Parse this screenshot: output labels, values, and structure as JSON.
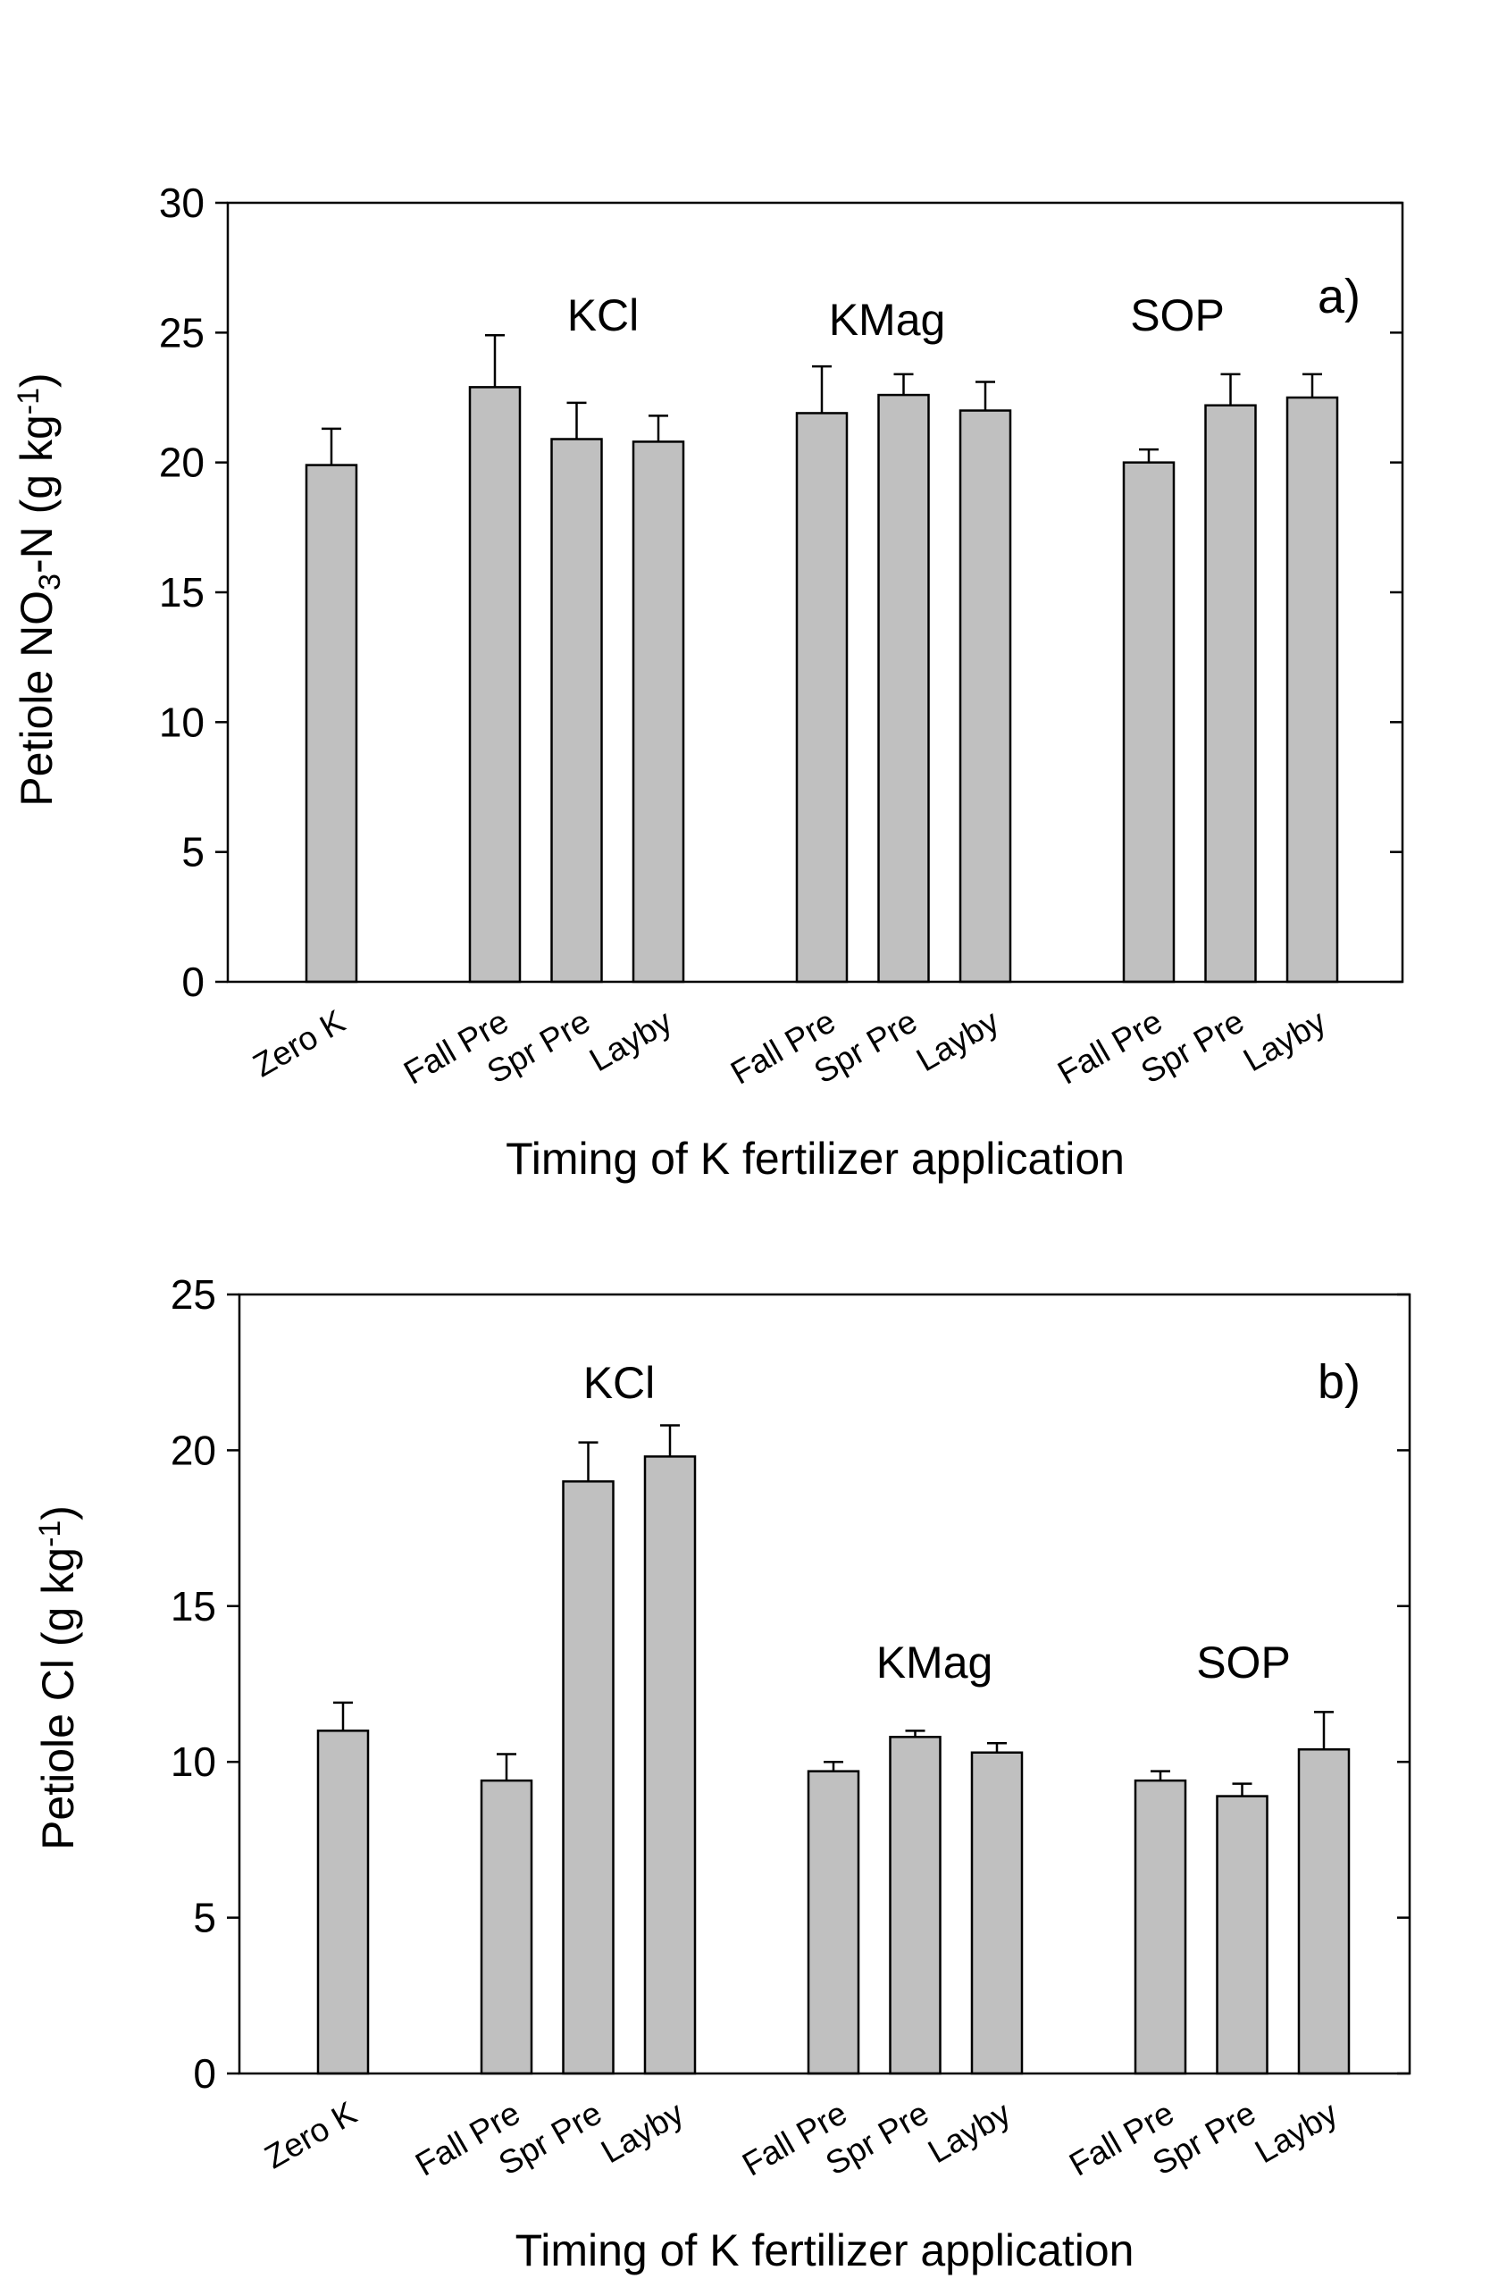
{
  "chart_data": [
    {
      "type": "bar",
      "panel_label": "a)",
      "categories": [
        "Zero K",
        "Fall Pre",
        "Spr Pre",
        "Layby",
        "Fall Pre",
        "Spr Pre",
        "Layby",
        "Fall Pre",
        "Spr Pre",
        "Layby"
      ],
      "groups": [
        "KCl",
        "KMag",
        "SOP"
      ],
      "values": [
        19.9,
        22.9,
        20.9,
        20.8,
        21.9,
        22.6,
        22.0,
        20.0,
        22.2,
        22.5
      ],
      "error_upper": [
        21.3,
        24.9,
        22.3,
        21.8,
        23.7,
        23.4,
        23.1,
        20.5,
        23.4,
        23.4
      ],
      "ylim": [
        0,
        30
      ],
      "yticks": [
        "0",
        "5",
        "10",
        "15",
        "20",
        "25",
        "30"
      ],
      "ylabel_parts": [
        {
          "t": "Petiole NO",
          "s": ""
        },
        {
          "t": "3",
          "s": "sub"
        },
        {
          "t": "-N (g kg",
          "s": ""
        },
        {
          "t": "-1",
          "s": "sup"
        },
        {
          "t": ")",
          "s": ""
        }
      ],
      "xlabel": "Timing of K fertilizer application",
      "bar_color": "#c0c0c0",
      "grid": false
    },
    {
      "type": "bar",
      "panel_label": "b)",
      "categories": [
        "Zero K",
        "Fall Pre",
        "Spr Pre",
        "Layby",
        "Fall Pre",
        "Spr Pre",
        "Layby",
        "Fall Pre",
        "Spr Pre",
        "Layby"
      ],
      "groups": [
        "KCl",
        "KMag",
        "SOP"
      ],
      "values": [
        11.0,
        9.4,
        19.0,
        19.8,
        9.7,
        10.8,
        10.3,
        9.4,
        8.9,
        10.4
      ],
      "error_upper": [
        11.9,
        10.25,
        20.25,
        20.8,
        10.0,
        11.0,
        10.6,
        9.7,
        9.3,
        11.6
      ],
      "ylim": [
        0,
        25
      ],
      "yticks": [
        "0",
        "5",
        "10",
        "15",
        "20",
        "25"
      ],
      "ylabel_parts": [
        {
          "t": "Petiole Cl (g kg",
          "s": ""
        },
        {
          "t": "-1",
          "s": "sup"
        },
        {
          "t": ")",
          "s": ""
        }
      ],
      "xlabel": "Timing of K fertilizer application",
      "bar_color": "#c0c0c0",
      "grid": false
    }
  ]
}
